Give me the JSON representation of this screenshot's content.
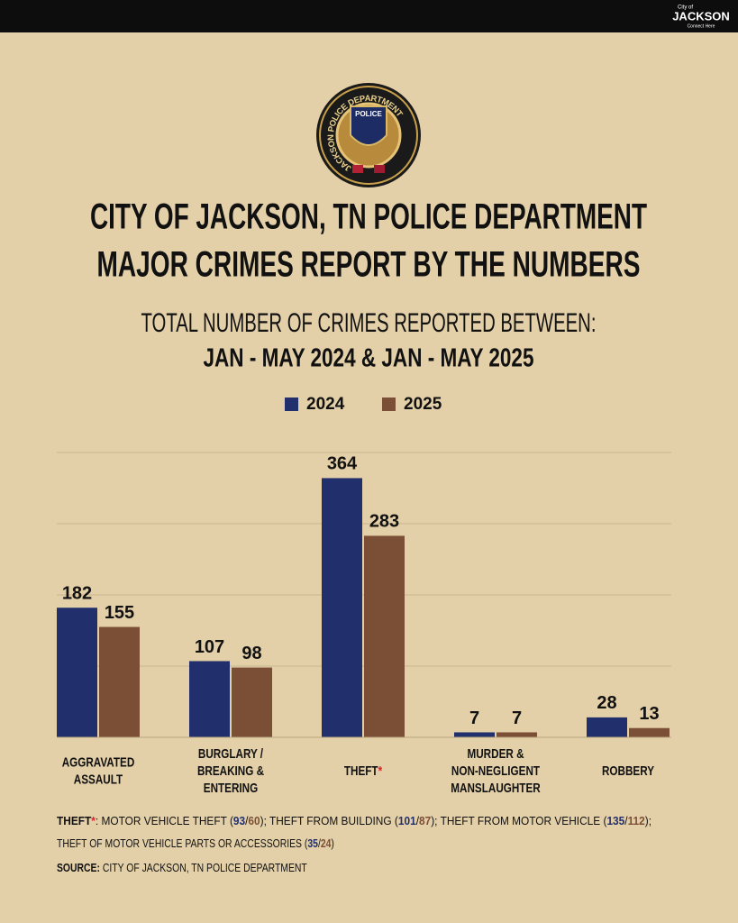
{
  "header": {
    "logo_small": "City of",
    "logo_name": "JACKSON",
    "logo_tagline": "Connect Here"
  },
  "badge": {
    "ring_text": "JACKSON POLICE DEPARTMENT",
    "center_text": "POLICE"
  },
  "chart_data": {
    "type": "bar",
    "title": [
      "CITY OF JACKSON, TN POLICE DEPARTMENT",
      "MAJOR CRIMES REPORT BY THE NUMBERS"
    ],
    "subtitle": [
      "TOTAL NUMBER OF CRIMES REPORTED BETWEEN:",
      "JAN - MAY 2024 & JAN - MAY 2025"
    ],
    "categories": [
      [
        "AGGRAVATED",
        "ASSAULT"
      ],
      [
        "BURGLARY /",
        "BREAKING &",
        "ENTERING"
      ],
      [
        "THEFT"
      ],
      [
        "MURDER &",
        "NON-NEGLIGENT",
        "MANSLAUGHTER"
      ],
      [
        "ROBBERY"
      ]
    ],
    "category_marker": {
      "index": 2,
      "marker": "*"
    },
    "series": [
      {
        "name": "2024",
        "color": "#222f6d",
        "values": [
          182,
          107,
          364,
          7,
          28
        ]
      },
      {
        "name": "2025",
        "color": "#7b4f36",
        "values": [
          155,
          98,
          283,
          7,
          13
        ]
      }
    ],
    "ylim": [
      0,
      400
    ],
    "yticks": [
      0,
      100,
      200,
      300,
      400
    ],
    "grid": true,
    "legend": "top"
  },
  "footnote": {
    "label": "THEFT",
    "marker": "*",
    "items": [
      {
        "name": "MOTOR VEHICLE THEFT",
        "values": [
          93,
          60
        ]
      },
      {
        "name": "THEFT FROM BUILDING",
        "values": [
          101,
          87
        ]
      },
      {
        "name": "THEFT FROM MOTOR VEHICLE",
        "values": [
          135,
          112
        ]
      },
      {
        "name": "THEFT OF MOTOR VEHICLE PARTS OR ACCESSORIES",
        "values": [
          35,
          24
        ]
      }
    ]
  },
  "source": {
    "label": "SOURCE:",
    "text": "CITY OF JACKSON, TN POLICE DEPARTMENT"
  }
}
